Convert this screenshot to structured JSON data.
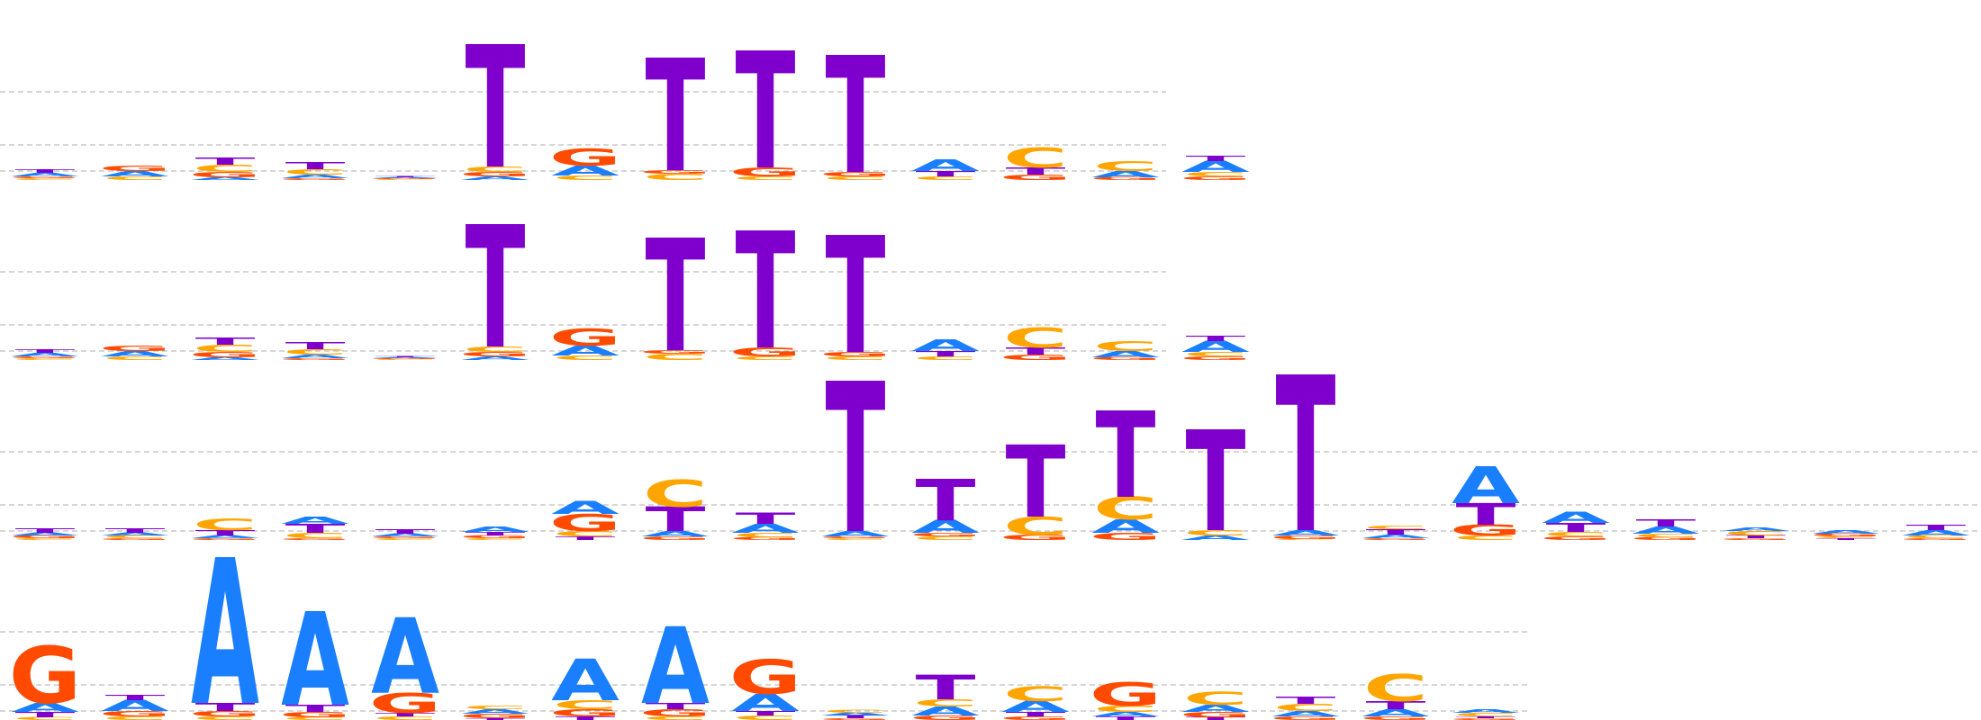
{
  "colors": {
    "A": "#1a7fff",
    "C": "#ffa500",
    "G": "#ff4a00",
    "T": "#7f00cc",
    "grid": "#bdbdbd"
  },
  "rows": [
    {
      "cols": [
        [
          "C",
          "G",
          "A",
          "T"
        ],
        [
          "C",
          "A",
          "G"
        ],
        [
          "A",
          "G",
          "C",
          "T"
        ],
        [
          "G",
          "A",
          "C",
          "T"
        ],
        [
          "C",
          "G",
          "A",
          "T"
        ],
        [
          "A",
          "G",
          "C",
          "T"
        ],
        [
          "C",
          "A",
          "G"
        ],
        [
          "C",
          "G",
          "T"
        ],
        [
          "C",
          "G",
          "T"
        ],
        [
          "C",
          "G",
          "T"
        ],
        [
          "C",
          "T",
          "A"
        ],
        [
          "G",
          "T",
          "C"
        ],
        [
          "G",
          "A",
          "C"
        ],
        [
          "G",
          "C",
          "A",
          "T"
        ]
      ]
    },
    {
      "cols": [
        [
          "C",
          "G",
          "A",
          "T"
        ],
        [
          "C",
          "A",
          "G"
        ],
        [
          "A",
          "G",
          "C",
          "T"
        ],
        [
          "G",
          "A",
          "C",
          "T"
        ],
        [
          "C",
          "G",
          "A",
          "T"
        ],
        [
          "A",
          "G",
          "C",
          "T"
        ],
        [
          "C",
          "A",
          "G"
        ],
        [
          "C",
          "G",
          "T"
        ],
        [
          "C",
          "G",
          "T"
        ],
        [
          "C",
          "G",
          "T"
        ],
        [
          "C",
          "T",
          "A"
        ],
        [
          "G",
          "T",
          "C"
        ],
        [
          "G",
          "A",
          "C"
        ],
        [
          "G",
          "C",
          "A",
          "T"
        ]
      ]
    },
    {
      "cols": [
        [
          "C",
          "G",
          "A",
          "T"
        ],
        [
          "G",
          "C",
          "A",
          "T"
        ],
        [
          "G",
          "A",
          "T",
          "C"
        ],
        [
          "G",
          "C",
          "T",
          "A"
        ],
        [
          "C",
          "G",
          "A",
          "T"
        ],
        [
          "C",
          "G",
          "T",
          "A"
        ],
        [
          "T",
          "C",
          "G",
          "A"
        ],
        [
          "G",
          "A",
          "T",
          "C"
        ],
        [
          "G",
          "C",
          "A",
          "T"
        ],
        [
          "C",
          "G",
          "A",
          "T"
        ],
        [
          "C",
          "G",
          "A",
          "T"
        ],
        [
          "G",
          "C",
          "T"
        ],
        [
          "G",
          "A",
          "C",
          "T"
        ],
        [
          "A",
          "C",
          "T"
        ],
        [
          "C",
          "G",
          "A",
          "T"
        ],
        [
          "G",
          "A",
          "T",
          "C"
        ],
        [
          "C",
          "G",
          "T",
          "A"
        ],
        [
          "G",
          "C",
          "T",
          "A"
        ],
        [
          "G",
          "C",
          "A",
          "T"
        ],
        [
          "G",
          "T",
          "C",
          "A"
        ],
        [
          "T",
          "C",
          "G",
          "A"
        ],
        [
          "G",
          "C",
          "A",
          "T"
        ]
      ]
    },
    {
      "cols": [
        [
          "C",
          "T",
          "A",
          "G"
        ],
        [
          "C",
          "G",
          "A",
          "T"
        ],
        [
          "C",
          "G",
          "T",
          "A"
        ],
        [
          "C",
          "G",
          "T",
          "A"
        ],
        [
          "C",
          "T",
          "G",
          "A"
        ],
        [
          "T",
          "G",
          "A",
          "C"
        ],
        [
          "T",
          "G",
          "C",
          "A"
        ],
        [
          "C",
          "G",
          "T",
          "A"
        ],
        [
          "C",
          "T",
          "A",
          "G"
        ],
        [
          "G",
          "T",
          "A",
          "C"
        ],
        [
          "G",
          "A",
          "C",
          "T"
        ],
        [
          "G",
          "T",
          "A",
          "C"
        ],
        [
          "T",
          "A",
          "C",
          "G"
        ],
        [
          "T",
          "G",
          "A",
          "C"
        ],
        [
          "G",
          "A",
          "C",
          "T"
        ],
        [
          "G",
          "A",
          "T",
          "C"
        ],
        [
          "G",
          "T",
          "C",
          "A"
        ]
      ]
    }
  ]
}
